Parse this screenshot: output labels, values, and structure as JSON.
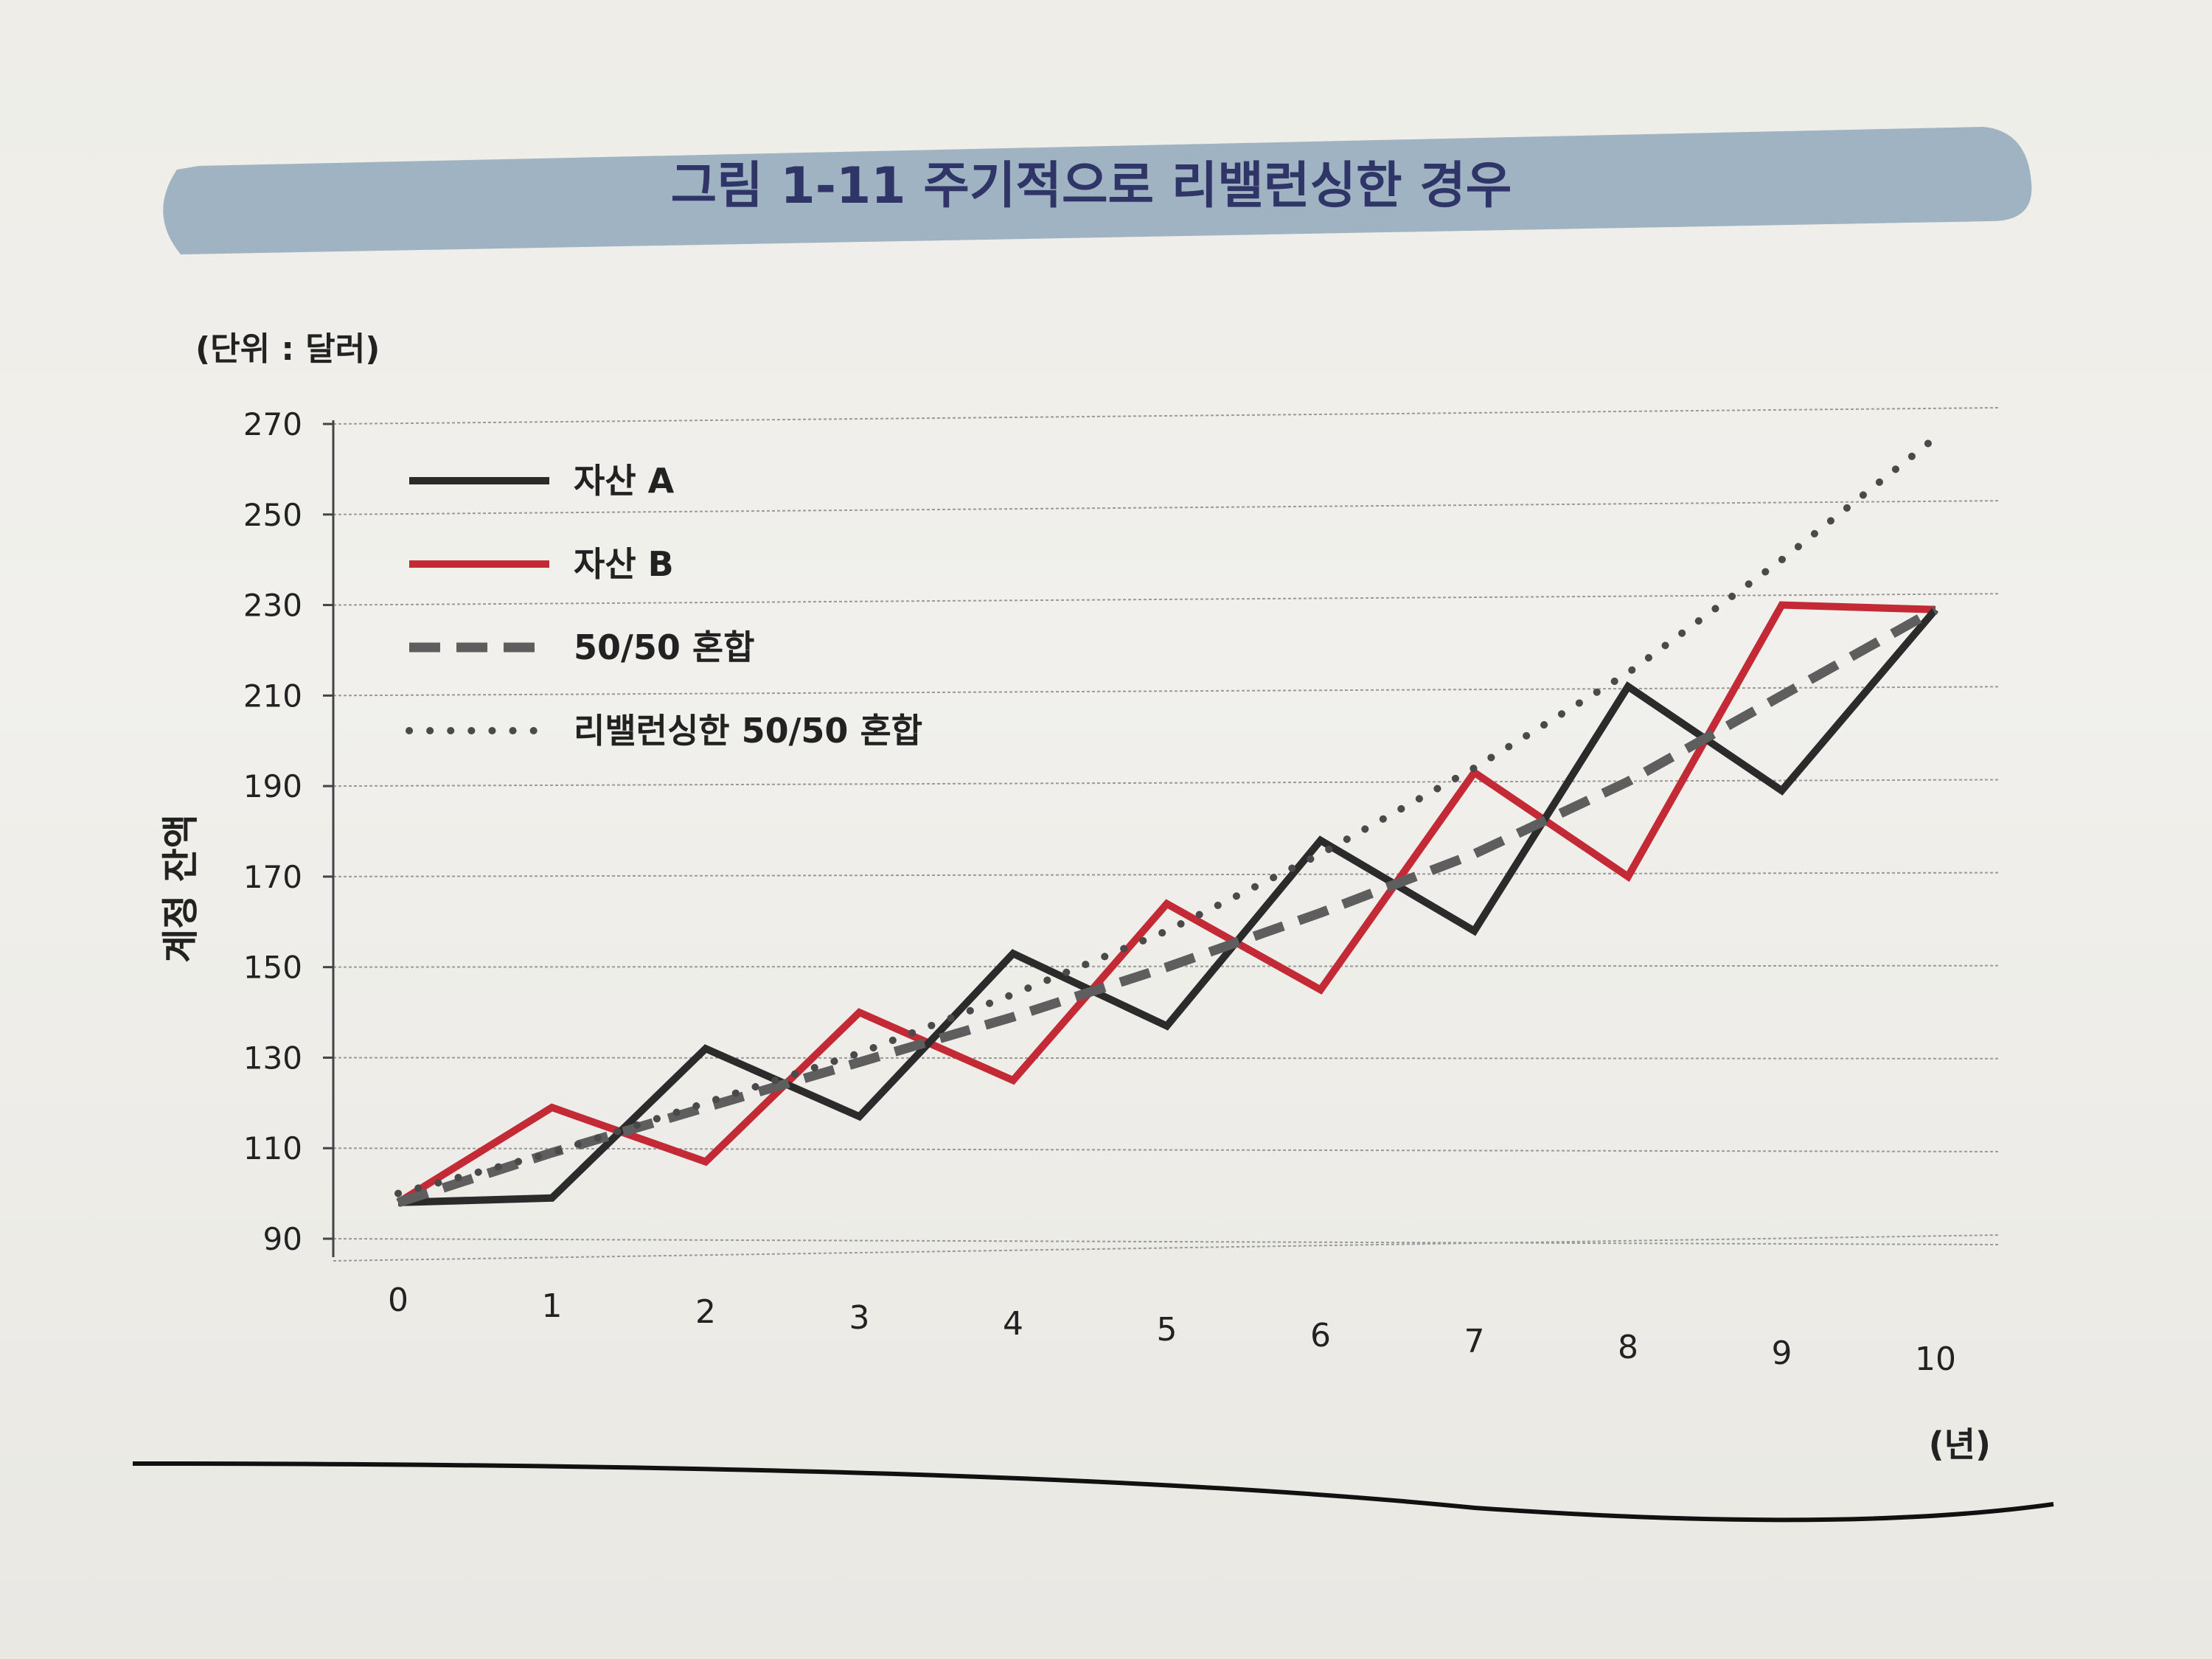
{
  "chart_data": {
    "type": "line",
    "title": "그림 1-11  주기적으로 리밸런싱한 경우",
    "unit_label": "(단위 : 달러)",
    "ylabel": "계정 잔액",
    "xlabel": "(년)",
    "x": [
      0,
      1,
      2,
      3,
      4,
      5,
      6,
      7,
      8,
      9,
      10
    ],
    "xticks": [
      "0",
      "1",
      "2",
      "3",
      "4",
      "5",
      "6",
      "7",
      "8",
      "9",
      "10"
    ],
    "ylim": [
      90,
      270
    ],
    "yticks": [
      "90",
      "110",
      "130",
      "150",
      "170",
      "190",
      "210",
      "230",
      "250",
      "270"
    ],
    "grid": true,
    "legend_position": "top-left",
    "series": [
      {
        "name": "자산 A",
        "color": "#2b2b2b",
        "style": "solid",
        "values": [
          98,
          99,
          132,
          117,
          153,
          137,
          178,
          158,
          212,
          189,
          229
        ]
      },
      {
        "name": "자산 B",
        "color": "#c42a35",
        "style": "solid",
        "values": [
          98,
          119,
          107,
          140,
          125,
          164,
          145,
          193,
          170,
          230,
          229
        ]
      },
      {
        "name": "50/50 혼합",
        "color": "#5e5e5e",
        "style": "dashed",
        "values": [
          98,
          109,
          119,
          129,
          139,
          150,
          162,
          175,
          191,
          210,
          229
        ]
      },
      {
        "name": "리밸런싱한 50/50 혼합",
        "color": "#4a4a4a",
        "style": "dotted",
        "values": [
          100,
          109,
          120,
          131,
          144,
          158,
          175,
          194,
          215,
          240,
          267
        ]
      }
    ]
  }
}
